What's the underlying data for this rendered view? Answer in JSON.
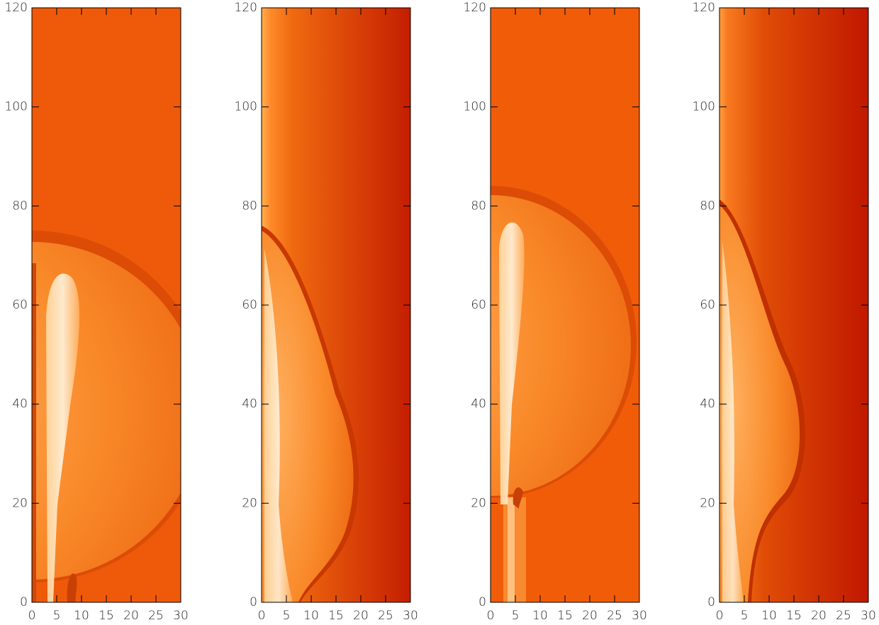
{
  "chart_data": [
    {
      "type": "image",
      "xlim": [
        0,
        30
      ],
      "ylim": [
        0,
        120
      ],
      "xticks": [
        0,
        5,
        10,
        15,
        20,
        25,
        30
      ],
      "yticks": [
        0,
        20,
        40,
        60,
        80,
        100,
        120
      ]
    },
    {
      "type": "image",
      "xlim": [
        0,
        30
      ],
      "ylim": [
        0,
        120
      ],
      "xticks": [
        0,
        5,
        10,
        15,
        20,
        25,
        30
      ],
      "yticks": [
        0,
        20,
        40,
        60,
        80,
        100,
        120
      ]
    },
    {
      "type": "image",
      "xlim": [
        0,
        30
      ],
      "ylim": [
        0,
        120
      ],
      "xticks": [
        0,
        5,
        10,
        15,
        20,
        25,
        30
      ],
      "yticks": [
        0,
        20,
        40,
        60,
        80,
        100,
        120
      ]
    },
    {
      "type": "image",
      "xlim": [
        0,
        30
      ],
      "ylim": [
        0,
        120
      ],
      "xticks": [
        0,
        5,
        10,
        15,
        20,
        25,
        30
      ],
      "yticks": [
        0,
        20,
        40,
        60,
        80,
        100,
        120
      ]
    }
  ]
}
